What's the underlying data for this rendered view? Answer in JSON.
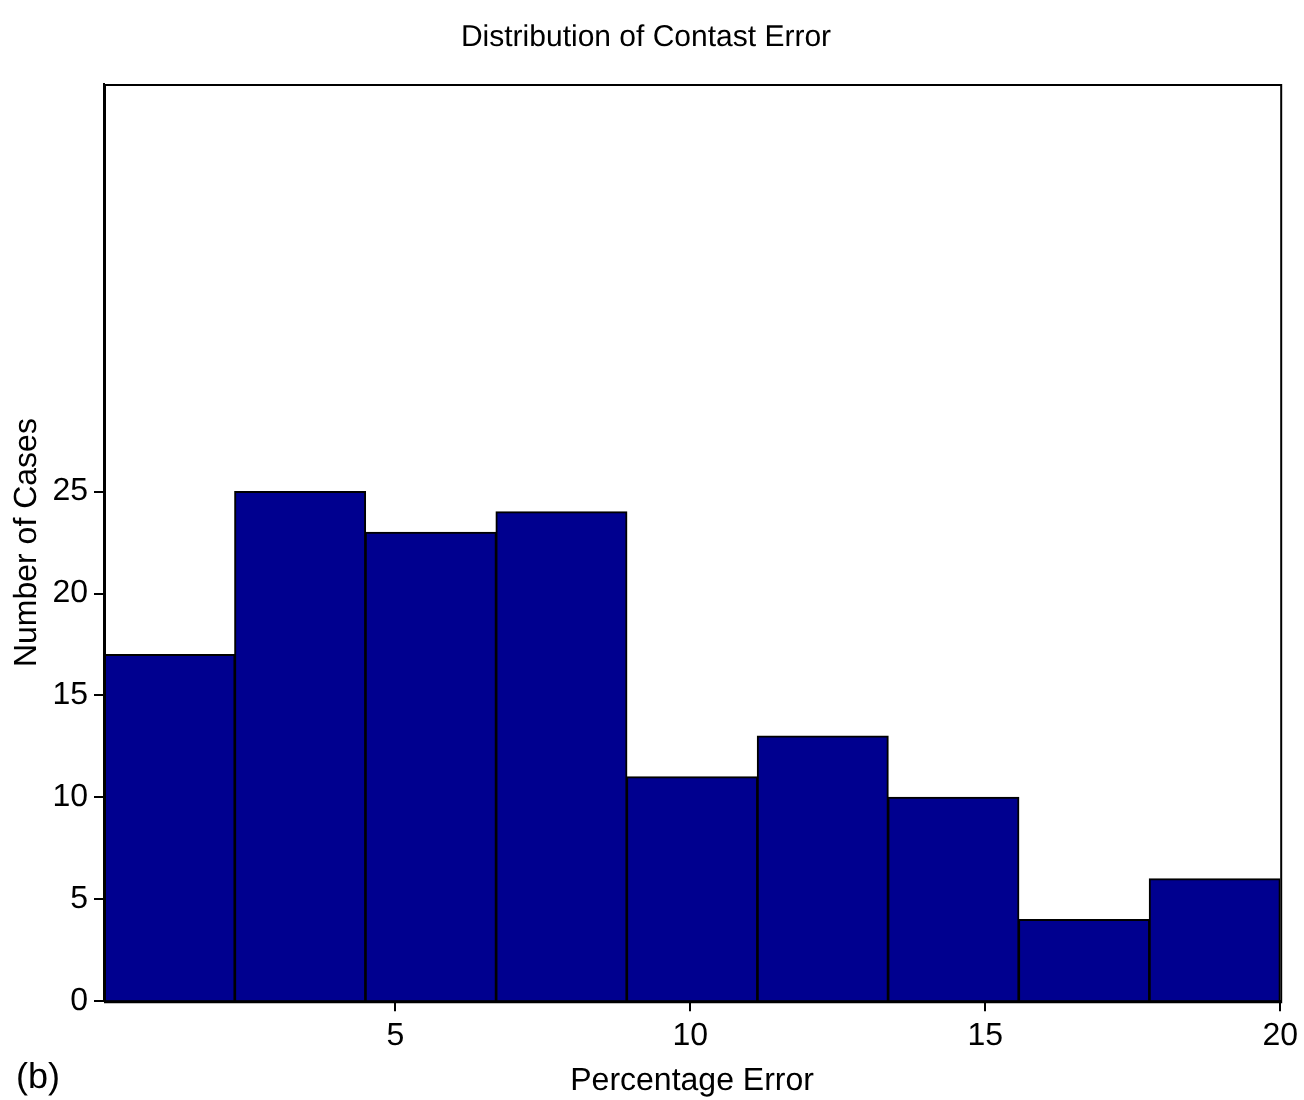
{
  "chart_data": {
    "type": "histogram",
    "title": "Distribution of Contast Error",
    "xlabel": "Percentage Error",
    "ylabel": "Number of Cases",
    "bins": [
      0.06,
      2.28,
      4.49,
      6.71,
      8.92,
      11.14,
      13.35,
      15.57,
      17.78,
      20
    ],
    "values": [
      17,
      25,
      23,
      24,
      11,
      13,
      10,
      4,
      6
    ],
    "color": "#00008f",
    "xlim": [
      0.06,
      20
    ],
    "xticks": [
      5,
      10,
      15,
      20
    ],
    "ylim": [
      0,
      45
    ],
    "yticks": [
      0,
      5,
      10,
      15,
      20,
      25
    ],
    "grid": false,
    "legend": false,
    "annotations": [
      "(b)"
    ]
  }
}
